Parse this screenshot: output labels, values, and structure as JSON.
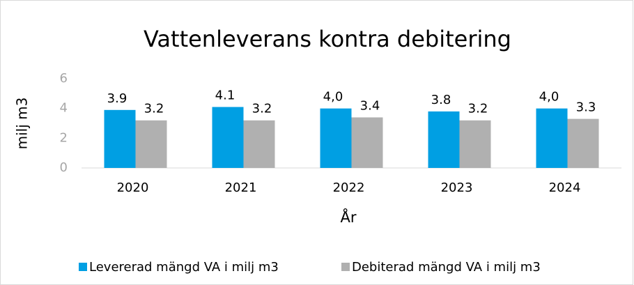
{
  "chart_data": {
    "type": "bar",
    "title": "Vattenleverans kontra debitering",
    "x_label": "År",
    "y_label": "milj m3",
    "categories": [
      "2020",
      "2021",
      "2022",
      "2023",
      "2024"
    ],
    "series": [
      {
        "name": "Levererad mängd VA i milj m3",
        "color": "#009fe3",
        "values": [
          3.9,
          4.1,
          4.0,
          3.8,
          4.0
        ],
        "value_labels": [
          "3.9",
          "4.1",
          "4,0",
          "3.8",
          "4,0"
        ]
      },
      {
        "name": "Debiterad mängd VA i milj m3",
        "color": "#b0b0b0",
        "values": [
          3.2,
          3.2,
          3.4,
          3.2,
          3.3
        ]
      }
    ],
    "ylim": [
      0,
      6
    ],
    "yticks": [
      0,
      2,
      4,
      6
    ],
    "grid": false,
    "legend": "bottom"
  }
}
